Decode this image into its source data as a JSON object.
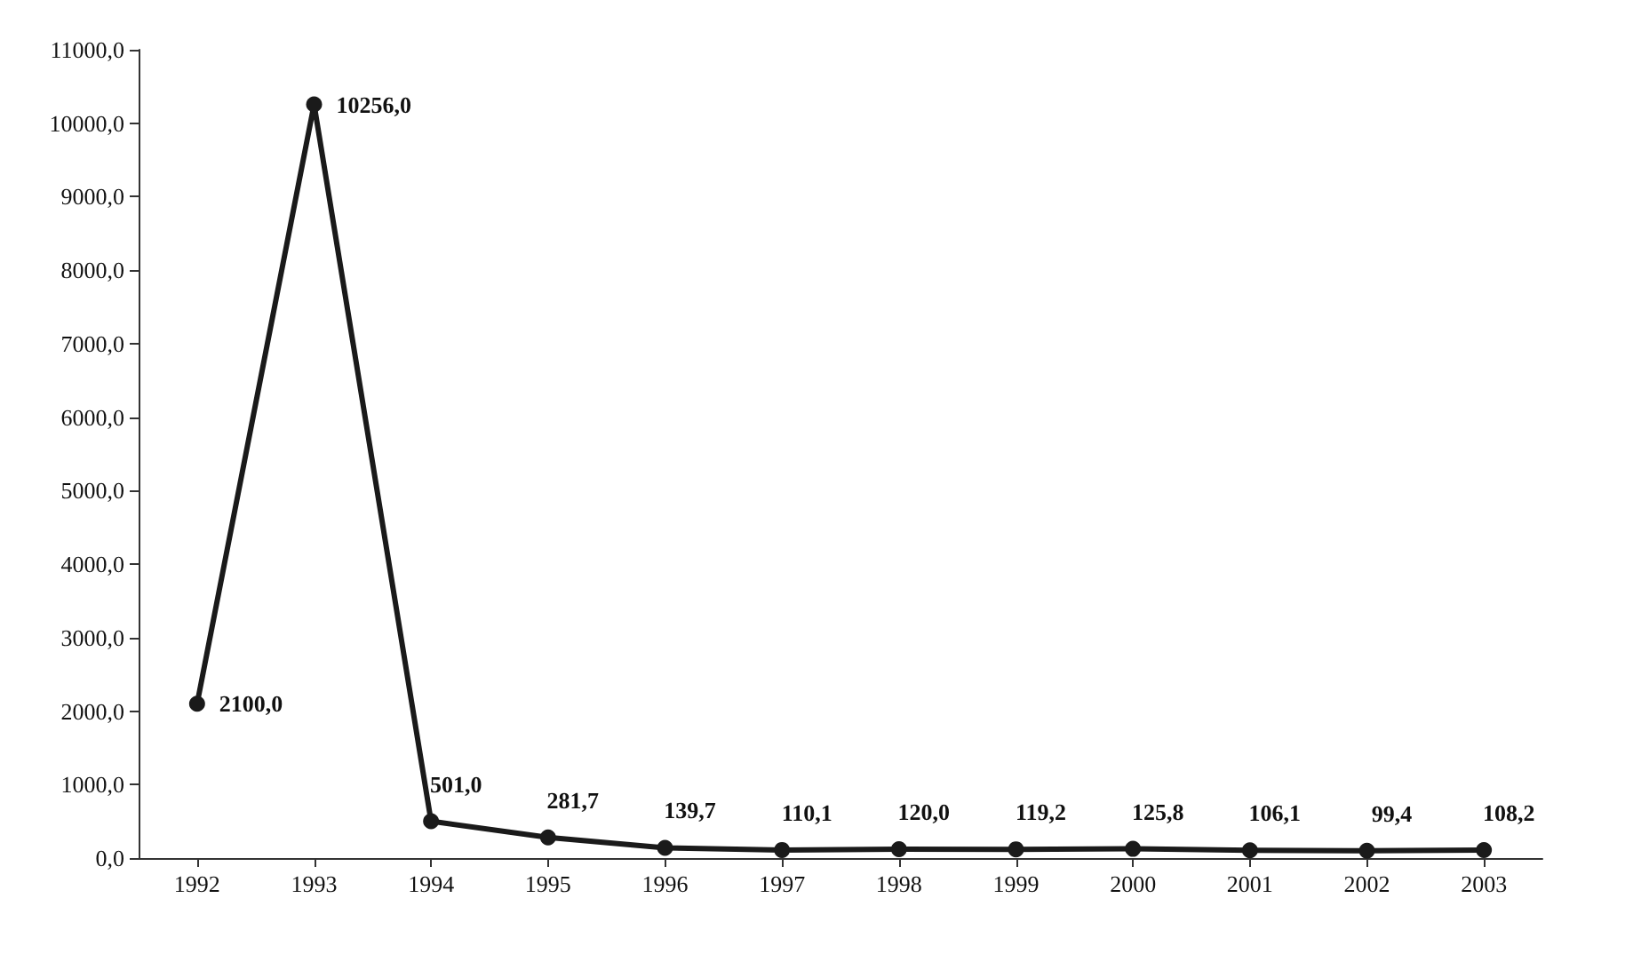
{
  "chart_data": {
    "type": "line",
    "categories": [
      "1992",
      "1993",
      "1994",
      "1995",
      "1996",
      "1997",
      "1998",
      "1999",
      "2000",
      "2001",
      "2002",
      "2003"
    ],
    "series": [
      {
        "color": "#1a1a1a",
        "values": [
          2100.0,
          10256.0,
          501.0,
          281.7,
          139.7,
          110.1,
          120.0,
          119.2,
          125.8,
          106.1,
          99.4,
          108.2
        ],
        "value_labels": [
          "2100,0",
          "10256,0",
          "501,0",
          "281,7",
          "139,7",
          "110,1",
          "120,0",
          "119,2",
          "125,8",
          "106,1",
          "99,4",
          "108,2"
        ]
      }
    ],
    "ylim": [
      0,
      11000
    ],
    "yticks": [
      {
        "value": 0,
        "label": "0,0"
      },
      {
        "value": 1000,
        "label": "1000,0"
      },
      {
        "value": 2000,
        "label": "2000,0"
      },
      {
        "value": 3000,
        "label": "3000,0"
      },
      {
        "value": 4000,
        "label": "4000,0"
      },
      {
        "value": 5000,
        "label": "5000,0"
      },
      {
        "value": 6000,
        "label": "6000,0"
      },
      {
        "value": 7000,
        "label": "7000,0"
      },
      {
        "value": 8000,
        "label": "8000,0"
      },
      {
        "value": 9000,
        "label": "9000,0"
      },
      {
        "value": 10000,
        "label": "10000,0"
      },
      {
        "value": 11000,
        "label": "11000,0"
      }
    ],
    "grid": false,
    "marker": "circle",
    "line_style": "solid"
  }
}
